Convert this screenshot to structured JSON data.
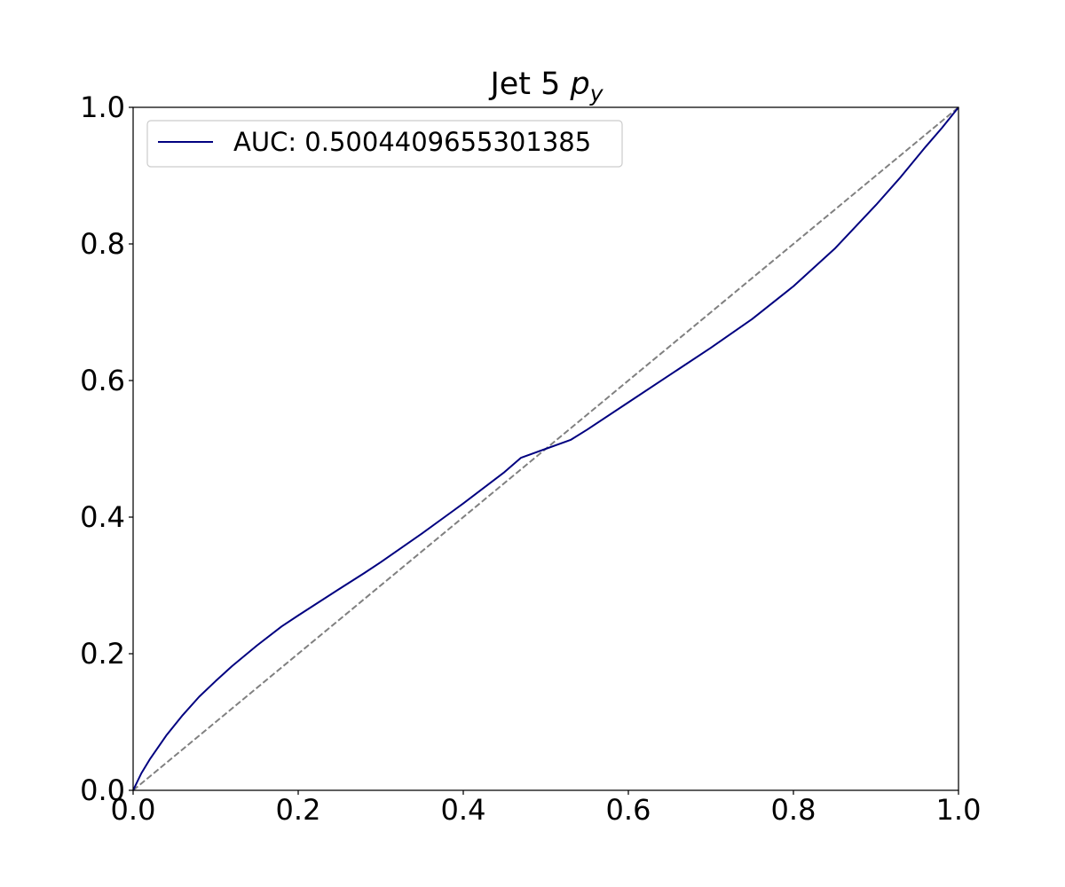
{
  "chart_data": {
    "type": "line",
    "title": {
      "main": "Jet 5 ",
      "math_symbol": "p",
      "subscript": "y"
    },
    "xlabel": "",
    "ylabel": "",
    "xlim": [
      0.0,
      1.0
    ],
    "ylim": [
      0.0,
      1.0
    ],
    "x_ticks": [
      0.0,
      0.2,
      0.4,
      0.6,
      0.8,
      1.0
    ],
    "y_ticks": [
      0.0,
      0.2,
      0.4,
      0.6,
      0.8,
      1.0
    ],
    "x_tick_labels": [
      "0.0",
      "0.2",
      "0.4",
      "0.6",
      "0.8",
      "1.0"
    ],
    "y_tick_labels": [
      "0.0",
      "0.2",
      "0.4",
      "0.6",
      "0.8",
      "1.0"
    ],
    "grid": false,
    "legend_position": "upper-left",
    "series": [
      {
        "name": "AUC: 0.5004409655301385",
        "color": "#000080",
        "style": "solid",
        "x": [
          0.0,
          0.01,
          0.02,
          0.04,
          0.06,
          0.08,
          0.1,
          0.12,
          0.15,
          0.18,
          0.2,
          0.25,
          0.28,
          0.3,
          0.35,
          0.4,
          0.45,
          0.47,
          0.5,
          0.53,
          0.55,
          0.6,
          0.65,
          0.7,
          0.75,
          0.8,
          0.85,
          0.9,
          0.93,
          0.96,
          0.98,
          1.0
        ],
        "y": [
          0.0,
          0.025,
          0.045,
          0.08,
          0.11,
          0.137,
          0.16,
          0.182,
          0.212,
          0.24,
          0.256,
          0.295,
          0.318,
          0.334,
          0.376,
          0.42,
          0.466,
          0.487,
          0.5,
          0.513,
          0.528,
          0.568,
          0.608,
          0.648,
          0.69,
          0.738,
          0.793,
          0.857,
          0.898,
          0.942,
          0.97,
          1.0
        ]
      },
      {
        "name": "",
        "color": "#808080",
        "style": "dashed",
        "x": [
          0.0,
          1.0
        ],
        "y": [
          0.0,
          1.0
        ]
      }
    ]
  }
}
